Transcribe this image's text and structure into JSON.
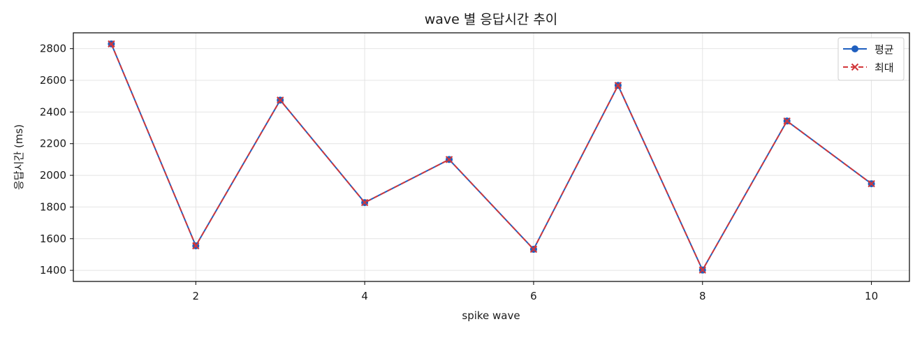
{
  "chart_data": {
    "type": "line",
    "title": "wave 별 응답시간 추이",
    "xlabel": "spike wave",
    "ylabel": "응답시간 (ms)",
    "x": [
      1,
      2,
      3,
      4,
      5,
      6,
      7,
      8,
      9,
      10
    ],
    "xlim": [
      0.55,
      10.45
    ],
    "ylim": [
      1330,
      2900
    ],
    "xticks": [
      2,
      4,
      6,
      8,
      10
    ],
    "yticks": [
      1400,
      1600,
      1800,
      2000,
      2200,
      2400,
      2600,
      2800
    ],
    "grid": true,
    "legend_position": "top-right",
    "series": [
      {
        "name": "평균",
        "values": [
          2830,
          1555,
          2475,
          1828,
          2100,
          1533,
          2568,
          1402,
          2343,
          1947
        ],
        "color": "#1f5fbf",
        "style": "solid",
        "marker": "circle"
      },
      {
        "name": "최대",
        "values": [
          2830,
          1555,
          2475,
          1828,
          2100,
          1533,
          2568,
          1402,
          2343,
          1947
        ],
        "color": "#d2373a",
        "style": "dashed",
        "marker": "x"
      }
    ]
  }
}
